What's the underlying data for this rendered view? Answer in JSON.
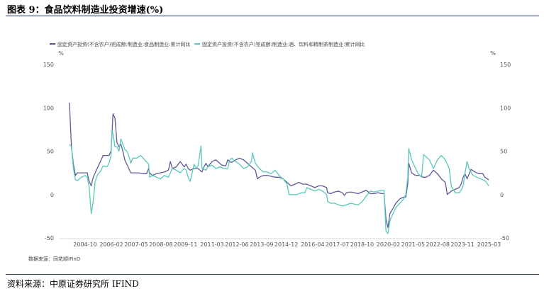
{
  "page": {
    "title": "图表 9：食品饮料制造业投资增速(%)",
    "source": "资料来源：中原证券研究所 IFIND"
  },
  "chart_data": {
    "type": "line",
    "data_source_note": "数据来源：同花顺iFinD",
    "unit_left": "%",
    "unit_right": "%",
    "ylim": [
      -50,
      150
    ],
    "yticks": [
      150,
      100,
      50,
      0,
      -50
    ],
    "xlim": [
      2003.5,
      2025.3
    ],
    "x_tick_labels": [
      "2004-10",
      "2006-02",
      "2007-05",
      "2008-08",
      "2009-11",
      "2011-03",
      "2012-06",
      "2013-09",
      "2014-12",
      "2016-04",
      "2017-07",
      "2018-10",
      "2020-02",
      "2021-05",
      "2022-08",
      "2023-11",
      "2025-03"
    ],
    "x_tick_values": [
      2004.79,
      2006.12,
      2007.37,
      2008.62,
      2009.87,
      2011.21,
      2012.46,
      2013.71,
      2014.96,
      2016.29,
      2017.54,
      2018.79,
      2020.12,
      2021.37,
      2022.62,
      2023.87,
      2025.21
    ],
    "legend_position": "top",
    "series": [
      {
        "name": "固定资产投资(不含农户)完成额:制造业:食品制造业:累计同比",
        "color": "#5b5b9c",
        "points": [
          [
            2004.0,
            106
          ],
          [
            2004.1,
            55
          ],
          [
            2004.2,
            35
          ],
          [
            2004.3,
            22
          ],
          [
            2004.4,
            25
          ],
          [
            2004.6,
            25
          ],
          [
            2004.8,
            25
          ],
          [
            2004.9,
            25
          ],
          [
            2005.0,
            15
          ],
          [
            2005.1,
            10
          ],
          [
            2005.2,
            20
          ],
          [
            2005.3,
            25
          ],
          [
            2005.4,
            30
          ],
          [
            2005.6,
            40
          ],
          [
            2005.7,
            45
          ],
          [
            2005.9,
            45
          ],
          [
            2006.0,
            45
          ],
          [
            2006.1,
            50
          ],
          [
            2006.15,
            70
          ],
          [
            2006.2,
            93
          ],
          [
            2006.3,
            88
          ],
          [
            2006.4,
            60
          ],
          [
            2006.5,
            55
          ],
          [
            2006.6,
            58
          ],
          [
            2006.7,
            50
          ],
          [
            2006.8,
            40
          ],
          [
            2006.9,
            35
          ],
          [
            2007.0,
            30
          ],
          [
            2007.1,
            25
          ],
          [
            2007.3,
            25
          ],
          [
            2007.5,
            25
          ],
          [
            2007.7,
            24
          ],
          [
            2007.9,
            24
          ],
          [
            2008.0,
            30
          ],
          [
            2008.05,
            25
          ],
          [
            2008.2,
            22
          ],
          [
            2008.4,
            24
          ],
          [
            2008.6,
            25
          ],
          [
            2008.8,
            26
          ],
          [
            2009.0,
            28
          ],
          [
            2009.1,
            38
          ],
          [
            2009.2,
            30
          ],
          [
            2009.4,
            32
          ],
          [
            2009.6,
            38
          ],
          [
            2009.8,
            32
          ],
          [
            2009.9,
            35
          ],
          [
            2010.0,
            30
          ],
          [
            2010.1,
            28
          ],
          [
            2010.3,
            30
          ],
          [
            2010.5,
            30
          ],
          [
            2010.7,
            26
          ],
          [
            2010.8,
            32
          ],
          [
            2010.9,
            36
          ],
          [
            2011.0,
            32
          ],
          [
            2011.2,
            38
          ],
          [
            2011.4,
            40
          ],
          [
            2011.6,
            36
          ],
          [
            2011.7,
            34
          ],
          [
            2011.9,
            33
          ],
          [
            2012.0,
            40
          ],
          [
            2012.1,
            38
          ],
          [
            2012.2,
            37
          ],
          [
            2012.4,
            40
          ],
          [
            2012.6,
            42
          ],
          [
            2012.8,
            40
          ],
          [
            2013.0,
            36
          ],
          [
            2013.2,
            32
          ],
          [
            2013.4,
            28
          ],
          [
            2013.5,
            18
          ],
          [
            2013.6,
            20
          ],
          [
            2013.8,
            22
          ],
          [
            2014.0,
            22
          ],
          [
            2014.2,
            21
          ],
          [
            2014.4,
            20
          ],
          [
            2014.6,
            20
          ],
          [
            2014.8,
            18
          ],
          [
            2015.0,
            14
          ],
          [
            2015.2,
            10
          ],
          [
            2015.4,
            12
          ],
          [
            2015.6,
            14
          ],
          [
            2015.8,
            12
          ],
          [
            2016.0,
            12
          ],
          [
            2016.2,
            10
          ],
          [
            2016.4,
            8
          ],
          [
            2016.6,
            10
          ],
          [
            2016.8,
            10
          ],
          [
            2017.0,
            8
          ],
          [
            2017.05,
            2
          ],
          [
            2017.2,
            1
          ],
          [
            2017.4,
            3
          ],
          [
            2017.6,
            4
          ],
          [
            2017.8,
            2
          ],
          [
            2017.9,
            -1
          ],
          [
            2018.0,
            2
          ],
          [
            2018.2,
            3
          ],
          [
            2018.4,
            2
          ],
          [
            2018.6,
            1
          ],
          [
            2018.8,
            3
          ],
          [
            2019.0,
            5
          ],
          [
            2019.2,
            1
          ],
          [
            2019.4,
            1
          ],
          [
            2019.6,
            2
          ],
          [
            2019.8,
            1
          ],
          [
            2019.9,
            1
          ],
          [
            2020.0,
            -28
          ],
          [
            2020.1,
            -38
          ],
          [
            2020.2,
            -22
          ],
          [
            2020.3,
            -18
          ],
          [
            2020.5,
            -10
          ],
          [
            2020.7,
            -5
          ],
          [
            2020.9,
            -3
          ],
          [
            2021.0,
            -3
          ],
          [
            2021.1,
            12
          ],
          [
            2021.15,
            36
          ],
          [
            2021.3,
            25
          ],
          [
            2021.5,
            22
          ],
          [
            2021.7,
            22
          ],
          [
            2021.9,
            20
          ],
          [
            2022.0,
            20
          ],
          [
            2022.2,
            22
          ],
          [
            2022.4,
            28
          ],
          [
            2022.6,
            24
          ],
          [
            2022.8,
            18
          ],
          [
            2023.0,
            14
          ],
          [
            2023.1,
            0
          ],
          [
            2023.3,
            4
          ],
          [
            2023.5,
            6
          ],
          [
            2023.7,
            8
          ],
          [
            2023.8,
            12
          ],
          [
            2023.9,
            20
          ],
          [
            2024.0,
            24
          ],
          [
            2024.1,
            18
          ],
          [
            2024.3,
            29
          ],
          [
            2024.5,
            26
          ],
          [
            2024.7,
            24
          ],
          [
            2024.9,
            24
          ],
          [
            2025.0,
            20
          ],
          [
            2025.2,
            17
          ]
        ]
      },
      {
        "name": "固定资产投资(不含农户)完成额:制造业:酒、饮料和精制茶制造业:累计同比",
        "color": "#5bc8b9",
        "points": [
          [
            2004.0,
            58
          ],
          [
            2004.1,
            55
          ],
          [
            2004.2,
            30
          ],
          [
            2004.3,
            17
          ],
          [
            2004.4,
            16
          ],
          [
            2004.6,
            20
          ],
          [
            2004.8,
            22
          ],
          [
            2004.9,
            20
          ],
          [
            2005.0,
            8
          ],
          [
            2005.1,
            -22
          ],
          [
            2005.2,
            -8
          ],
          [
            2005.3,
            15
          ],
          [
            2005.4,
            22
          ],
          [
            2005.6,
            28
          ],
          [
            2005.7,
            33
          ],
          [
            2005.9,
            32
          ],
          [
            2006.0,
            36
          ],
          [
            2006.1,
            45
          ],
          [
            2006.15,
            74
          ],
          [
            2006.2,
            70
          ],
          [
            2006.3,
            55
          ],
          [
            2006.4,
            55
          ],
          [
            2006.5,
            50
          ],
          [
            2006.6,
            64
          ],
          [
            2006.7,
            58
          ],
          [
            2006.8,
            52
          ],
          [
            2006.9,
            50
          ],
          [
            2007.0,
            45
          ],
          [
            2007.1,
            36
          ],
          [
            2007.2,
            42
          ],
          [
            2007.4,
            42
          ],
          [
            2007.6,
            45
          ],
          [
            2007.8,
            40
          ],
          [
            2008.0,
            35
          ],
          [
            2008.05,
            20
          ],
          [
            2008.2,
            22
          ],
          [
            2008.4,
            20
          ],
          [
            2008.6,
            18
          ],
          [
            2008.8,
            22
          ],
          [
            2009.0,
            20
          ],
          [
            2009.1,
            25
          ],
          [
            2009.2,
            30
          ],
          [
            2009.4,
            28
          ],
          [
            2009.6,
            25
          ],
          [
            2009.8,
            30
          ],
          [
            2009.9,
            28
          ],
          [
            2010.0,
            20
          ],
          [
            2010.1,
            15
          ],
          [
            2010.2,
            25
          ],
          [
            2010.3,
            35
          ],
          [
            2010.4,
            30
          ],
          [
            2010.5,
            33
          ],
          [
            2010.65,
            56
          ],
          [
            2010.7,
            30
          ],
          [
            2010.9,
            28
          ],
          [
            2011.0,
            32
          ],
          [
            2011.2,
            34
          ],
          [
            2011.4,
            30
          ],
          [
            2011.6,
            32
          ],
          [
            2011.8,
            30
          ],
          [
            2012.0,
            30
          ],
          [
            2012.1,
            40
          ],
          [
            2012.2,
            42
          ],
          [
            2012.4,
            38
          ],
          [
            2012.6,
            35
          ],
          [
            2012.8,
            30
          ],
          [
            2013.0,
            32
          ],
          [
            2013.2,
            38
          ],
          [
            2013.25,
            48
          ],
          [
            2013.4,
            36
          ],
          [
            2013.6,
            30
          ],
          [
            2013.8,
            26
          ],
          [
            2014.0,
            26
          ],
          [
            2014.2,
            24
          ],
          [
            2014.4,
            28
          ],
          [
            2014.6,
            22
          ],
          [
            2014.8,
            18
          ],
          [
            2015.0,
            12
          ],
          [
            2015.1,
            0
          ],
          [
            2015.3,
            0
          ],
          [
            2015.5,
            0
          ],
          [
            2015.7,
            2
          ],
          [
            2015.9,
            2
          ],
          [
            2016.0,
            8
          ],
          [
            2016.2,
            6
          ],
          [
            2016.4,
            4
          ],
          [
            2016.6,
            6
          ],
          [
            2016.8,
            4
          ],
          [
            2017.0,
            0
          ],
          [
            2017.05,
            -8
          ],
          [
            2017.2,
            -10
          ],
          [
            2017.4,
            -10
          ],
          [
            2017.6,
            -12
          ],
          [
            2017.8,
            -13
          ],
          [
            2018.0,
            -12
          ],
          [
            2018.2,
            -10
          ],
          [
            2018.4,
            -11
          ],
          [
            2018.6,
            -12
          ],
          [
            2018.8,
            -8
          ],
          [
            2019.0,
            -2
          ],
          [
            2019.2,
            4
          ],
          [
            2019.4,
            3
          ],
          [
            2019.6,
            4
          ],
          [
            2019.8,
            5
          ],
          [
            2019.9,
            5
          ],
          [
            2020.0,
            -42
          ],
          [
            2020.1,
            -45
          ],
          [
            2020.2,
            -30
          ],
          [
            2020.3,
            -25
          ],
          [
            2020.5,
            -15
          ],
          [
            2020.7,
            -10
          ],
          [
            2020.9,
            -5
          ],
          [
            2021.0,
            0
          ],
          [
            2021.1,
            20
          ],
          [
            2021.15,
            53
          ],
          [
            2021.3,
            40
          ],
          [
            2021.5,
            30
          ],
          [
            2021.6,
            25
          ],
          [
            2021.8,
            20
          ],
          [
            2021.9,
            46
          ],
          [
            2022.0,
            44
          ],
          [
            2022.2,
            40
          ],
          [
            2022.4,
            30
          ],
          [
            2022.6,
            40
          ],
          [
            2022.8,
            45
          ],
          [
            2023.0,
            40
          ],
          [
            2023.2,
            30
          ],
          [
            2023.3,
            10
          ],
          [
            2023.5,
            2
          ],
          [
            2023.7,
            2
          ],
          [
            2023.8,
            5
          ],
          [
            2023.9,
            10
          ],
          [
            2024.0,
            25
          ],
          [
            2024.1,
            38
          ],
          [
            2024.2,
            30
          ],
          [
            2024.4,
            22
          ],
          [
            2024.6,
            20
          ],
          [
            2024.8,
            18
          ],
          [
            2025.0,
            16
          ],
          [
            2025.2,
            10
          ]
        ]
      }
    ]
  }
}
